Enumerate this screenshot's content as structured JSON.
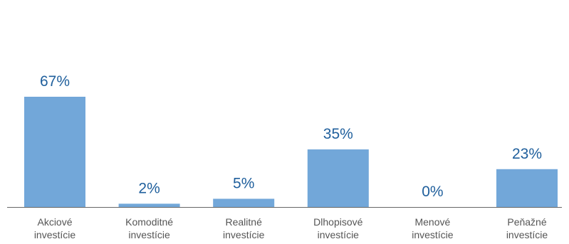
{
  "chart_data": {
    "type": "bar",
    "categories": [
      [
        "Akciové",
        "investície"
      ],
      [
        "Komoditné",
        "investície"
      ],
      [
        "Realitné",
        "investície"
      ],
      [
        "Dlhopisové",
        "investície"
      ],
      [
        "Menové",
        "investície"
      ],
      [
        "Peňažné",
        "investície"
      ]
    ],
    "values": [
      67,
      2,
      5,
      35,
      0,
      23
    ],
    "data_labels": [
      "67%",
      "2%",
      "5%",
      "35%",
      "0%",
      "23%"
    ],
    "ylim": [
      0,
      100
    ],
    "grid": false,
    "legend": "none",
    "colors": {
      "bar": "#72a7d9",
      "data_label": "#1f5f9c",
      "category_label": "#555555",
      "axis": "#666666"
    }
  }
}
